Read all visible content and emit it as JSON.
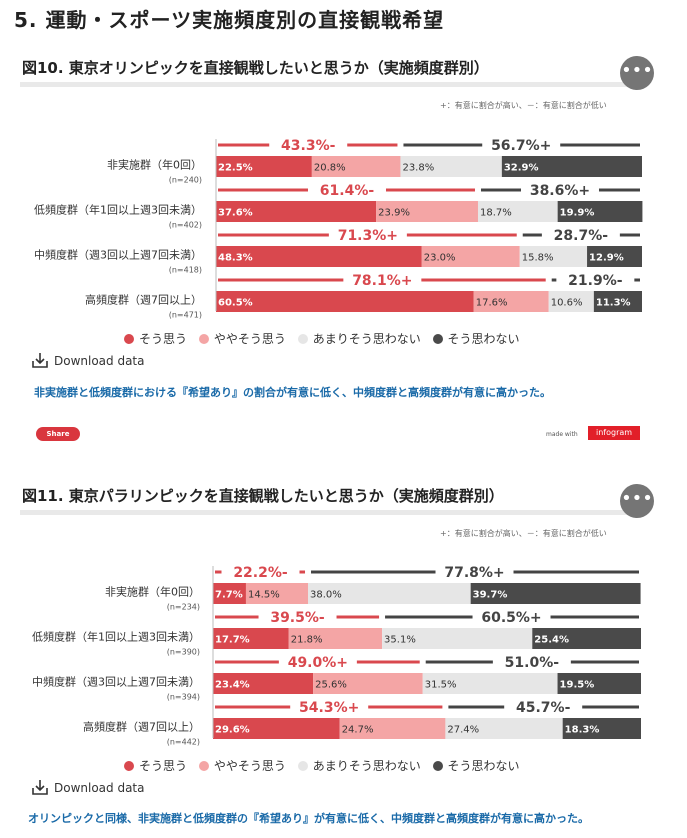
{
  "page_title": "5. 運動・スポーツ実施頻度別の直接観戦希望",
  "colors": {
    "so_omou": "#d9484e",
    "yaya": "#f4a5a5",
    "amari": "#e6e6e6",
    "omowanai": "#4a4a4a",
    "agg_left": "#d9484e",
    "agg_right": "#444444",
    "desc_text": "#1a6aa8"
  },
  "more_icon": "more-dots-icon",
  "download_label": "Download data",
  "note": "+：有意に割合が高い、－：有意に割合が低い",
  "share_label": "Share",
  "made_with": "made with",
  "infogram": "infogram",
  "charts": [
    {
      "title": "図10. 東京オリンピックを直接観戦したいと思うか（実施頻度群別）",
      "description": "非実施群と低頻度群における『希望あり』の割合が有意に低く、中頻度群と高頻度群が有意に高かった。",
      "chart_data": {
        "type": "bar",
        "stacked": true,
        "orientation": "horizontal",
        "legend_position": "bottom",
        "legend": [
          "そう思う",
          "ややそう思う",
          "あまりそう思わない",
          "そう思わない"
        ],
        "rows": [
          {
            "label": "非実施群（年0回）",
            "n": "(n=240)",
            "values": [
              22.5,
              20.8,
              23.8,
              32.9
            ],
            "value_labels": [
              "22.5%",
              "20.8%",
              "23.8%",
              "32.9%"
            ],
            "agg_left": "43.3%-",
            "agg_right": "56.7%+"
          },
          {
            "label": "低頻度群（年1回以上週3回未満）",
            "n": "(n=402)",
            "values": [
              37.6,
              23.9,
              18.7,
              19.9
            ],
            "value_labels": [
              "37.6%",
              "23.9%",
              "18.7%",
              "19.9%"
            ],
            "agg_left": "61.4%-",
            "agg_right": "38.6%+"
          },
          {
            "label": "中頻度群（週3回以上週7回未満）",
            "n": "(n=418)",
            "values": [
              48.3,
              23.0,
              15.8,
              12.9
            ],
            "value_labels": [
              "48.3%",
              "23.0%",
              "15.8%",
              "12.9%"
            ],
            "agg_left": "71.3%+",
            "agg_right": "28.7%-"
          },
          {
            "label": "高頻度群（週7回以上）",
            "n": "(n=471)",
            "values": [
              60.5,
              17.6,
              10.6,
              11.3
            ],
            "value_labels": [
              "60.5%",
              "17.6%",
              "10.6%",
              "11.3%"
            ],
            "agg_left": "78.1%+",
            "agg_right": "21.9%-"
          }
        ]
      }
    },
    {
      "title": "図11. 東京パラリンピックを直接観戦したいと思うか（実施頻度群別）",
      "description": "オリンピックと同様、非実施群と低頻度群の『希望あり』が有意に低く、中頻度群と高頻度群が有意に高かった。",
      "chart_data": {
        "type": "bar",
        "stacked": true,
        "orientation": "horizontal",
        "legend_position": "bottom",
        "legend": [
          "そう思う",
          "ややそう思う",
          "あまりそう思わない",
          "そう思わない"
        ],
        "rows": [
          {
            "label": "非実施群（年0回）",
            "n": "(n=234)",
            "values": [
              7.7,
              14.5,
              38.0,
              39.7
            ],
            "value_labels": [
              "7.7%",
              "14.5%",
              "38.0%",
              "39.7%"
            ],
            "agg_left": "22.2%-",
            "agg_right": "77.8%+"
          },
          {
            "label": "低頻度群（年1回以上週3回未満）",
            "n": "(n=390)",
            "values": [
              17.7,
              21.8,
              35.1,
              25.4
            ],
            "value_labels": [
              "17.7%",
              "21.8%",
              "35.1%",
              "25.4%"
            ],
            "agg_left": "39.5%-",
            "agg_right": "60.5%+"
          },
          {
            "label": "中頻度群（週3回以上週7回未満）",
            "n": "(n=394)",
            "values": [
              23.4,
              25.6,
              31.5,
              19.5
            ],
            "value_labels": [
              "23.4%",
              "25.6%",
              "31.5%",
              "19.5%"
            ],
            "agg_left": "49.0%+",
            "agg_right": "51.0%-"
          },
          {
            "label": "高頻度群（週7回以上）",
            "n": "(n=442)",
            "values": [
              29.6,
              24.7,
              27.4,
              18.3
            ],
            "value_labels": [
              "29.6%",
              "24.7%",
              "27.4%",
              "18.3%"
            ],
            "agg_left": "54.3%+",
            "agg_right": "45.7%-"
          }
        ]
      }
    }
  ]
}
